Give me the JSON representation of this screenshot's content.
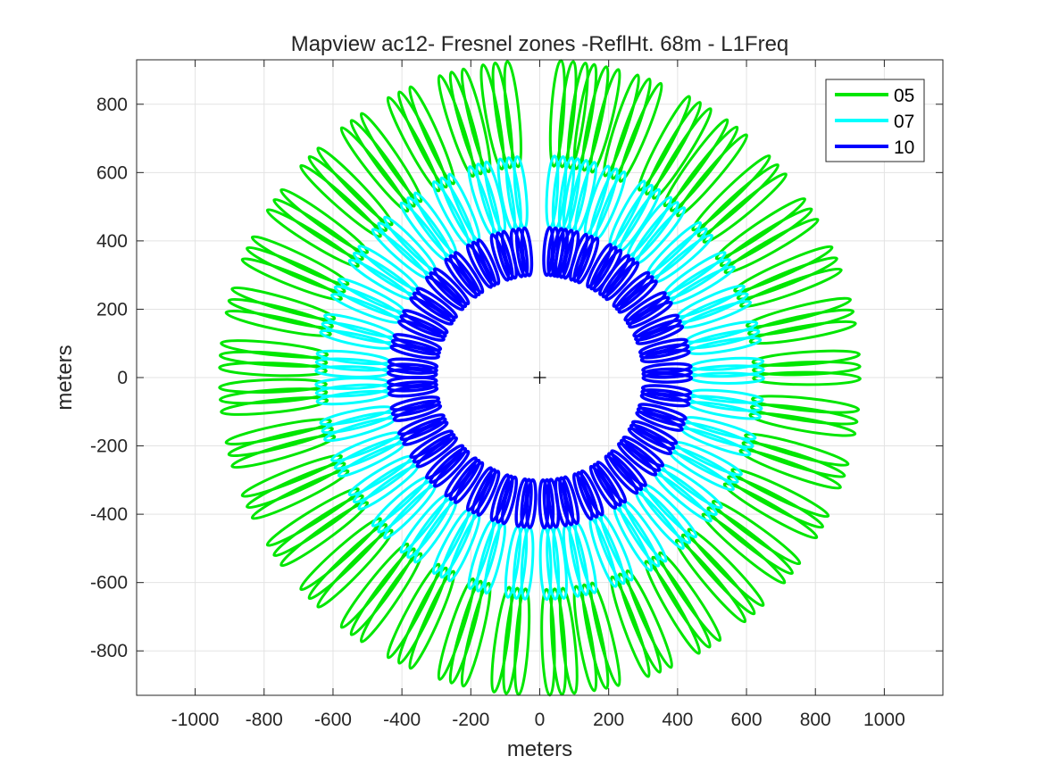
{
  "chart_data": {
    "type": "scatter",
    "title": "Mapview ac12- Fresnel zones -ReflHt. 68m - L1Freq",
    "xlabel": "meters",
    "ylabel": "meters",
    "xlim": [
      -1170,
      1170
    ],
    "ylim": [
      -930,
      930
    ],
    "xticks": [
      -1000,
      -800,
      -600,
      -400,
      -200,
      0,
      200,
      400,
      600,
      800,
      1000
    ],
    "yticks": [
      -800,
      -600,
      -400,
      -200,
      0,
      200,
      400,
      600,
      800
    ],
    "xtick_labels": [
      "-1000",
      "-800",
      "-600",
      "-400",
      "-200",
      "0",
      "200",
      "400",
      "600",
      "800",
      "1000"
    ],
    "ytick_labels": [
      "-800",
      "-600",
      "-400",
      "-200",
      "0",
      "200",
      "400",
      "600",
      "800"
    ],
    "grid": true,
    "legend_position": "top-right",
    "center_marker": [
      0,
      0
    ],
    "series": [
      {
        "name": "05",
        "color": "#00e600",
        "elevation_deg": 5,
        "radius_range_m": [
          620,
          930
        ],
        "ellipse_half_length_m": 155,
        "ellipse_half_width_m": 18
      },
      {
        "name": "07",
        "color": "#00ffff",
        "elevation_deg": 7,
        "radius_range_m": [
          440,
          650
        ],
        "ellipse_half_length_m": 105,
        "ellipse_half_width_m": 15
      },
      {
        "name": "10",
        "color": "#0000ff",
        "elevation_deg": 10,
        "radius_range_m": [
          300,
          440
        ],
        "ellipse_half_length_m": 70,
        "ellipse_half_width_m": 12
      }
    ],
    "azimuth_groups_deg": [
      6,
      12,
      20,
      30,
      38,
      48,
      58,
      68,
      78,
      88,
      98,
      108,
      118,
      128,
      138,
      148,
      158,
      168,
      176,
      186,
      196,
      206,
      216,
      226,
      236,
      246,
      256,
      266,
      274,
      284,
      294,
      304,
      314,
      324,
      334,
      344,
      352
    ]
  }
}
